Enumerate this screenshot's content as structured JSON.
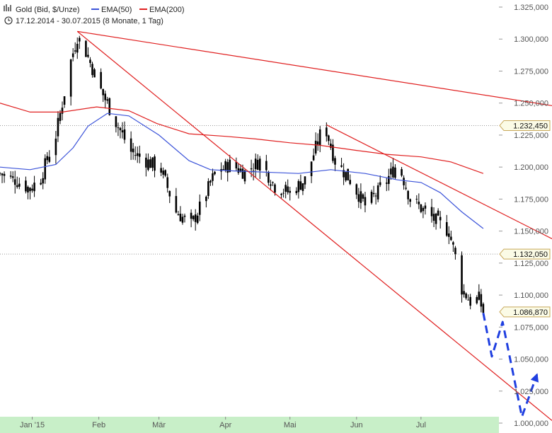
{
  "header": {
    "instrument": "Gold (Bid, $/Unze)",
    "ema_short_label": "EMA(50)",
    "ema_long_label": "EMA(200)",
    "period": "17.12.2014 - 30.07.2015 (8 Monate, 1 Tag)"
  },
  "colors": {
    "ema_short": "#3b53d9",
    "ema_long": "#e02020",
    "trendline": "#e02020",
    "projection": "#1f3fe0",
    "candle": "#000000",
    "x_axis_band": "#c8efc8",
    "badge_fill": "#fbfbe6",
    "badge_stroke": "#c8a85a"
  },
  "chart_data": {
    "type": "line",
    "x_ticks": [
      "Jan '15",
      "Feb",
      "Mär",
      "Apr",
      "Mai",
      "Jun",
      "Jul"
    ],
    "y_ticks": [
      "1.000,000",
      "1.025,000",
      "1.050,000",
      "1.075,000",
      "1.100,000",
      "1.125,000",
      "1.150,000",
      "1.175,000",
      "1.200,000",
      "1.225,000",
      "1.250,000",
      "1.275,000",
      "1.300,000",
      "1.325,000"
    ],
    "y_tick_values": [
      1000,
      1025,
      1050,
      1075,
      1100,
      1125,
      1150,
      1175,
      1200,
      1225,
      1250,
      1275,
      1300,
      1325
    ],
    "ylim": [
      1000,
      1325
    ],
    "x_range": [
      "2014-12-17",
      "2015-08-31"
    ],
    "price_close_path": [
      [
        "2014-12-17",
        1195
      ],
      [
        "2014-12-24",
        1190
      ],
      [
        "2014-12-31",
        1183
      ],
      [
        "2015-01-05",
        1192
      ],
      [
        "2015-01-12",
        1225
      ],
      [
        "2015-01-19",
        1283
      ],
      [
        "2015-01-22",
        1302
      ],
      [
        "2015-01-26",
        1290
      ],
      [
        "2015-02-02",
        1260
      ],
      [
        "2015-02-09",
        1235
      ],
      [
        "2015-02-16",
        1212
      ],
      [
        "2015-02-23",
        1205
      ],
      [
        "2015-03-02",
        1198
      ],
      [
        "2015-03-09",
        1165
      ],
      [
        "2015-03-16",
        1155
      ],
      [
        "2015-03-20",
        1168
      ],
      [
        "2015-03-27",
        1195
      ],
      [
        "2015-04-03",
        1202
      ],
      [
        "2015-04-10",
        1196
      ],
      [
        "2015-04-17",
        1205
      ],
      [
        "2015-04-24",
        1185
      ],
      [
        "2015-05-01",
        1180
      ],
      [
        "2015-05-08",
        1190
      ],
      [
        "2015-05-15",
        1225
      ],
      [
        "2015-05-18",
        1228
      ],
      [
        "2015-05-22",
        1205
      ],
      [
        "2015-05-29",
        1190
      ],
      [
        "2015-06-05",
        1170
      ],
      [
        "2015-06-12",
        1182
      ],
      [
        "2015-06-19",
        1200
      ],
      [
        "2015-06-22",
        1195
      ],
      [
        "2015-06-26",
        1175
      ],
      [
        "2015-07-03",
        1165
      ],
      [
        "2015-07-10",
        1155
      ],
      [
        "2015-07-14",
        1150
      ],
      [
        "2015-07-17",
        1130
      ],
      [
        "2015-07-20",
        1105
      ],
      [
        "2015-07-24",
        1095
      ],
      [
        "2015-07-28",
        1097
      ],
      [
        "2015-07-30",
        1087
      ]
    ],
    "series": [
      {
        "name": "EMA(50)",
        "points": [
          [
            "2014-12-17",
            1200
          ],
          [
            "2014-12-31",
            1198
          ],
          [
            "2015-01-12",
            1202
          ],
          [
            "2015-01-20",
            1215
          ],
          [
            "2015-01-27",
            1232
          ],
          [
            "2015-02-05",
            1242
          ],
          [
            "2015-02-15",
            1240
          ],
          [
            "2015-03-01",
            1225
          ],
          [
            "2015-03-15",
            1205
          ],
          [
            "2015-03-25",
            1198
          ],
          [
            "2015-04-05",
            1197
          ],
          [
            "2015-04-20",
            1196
          ],
          [
            "2015-05-05",
            1195
          ],
          [
            "2015-05-20",
            1198
          ],
          [
            "2015-06-05",
            1195
          ],
          [
            "2015-06-20",
            1190
          ],
          [
            "2015-07-01",
            1188
          ],
          [
            "2015-07-10",
            1180
          ],
          [
            "2015-07-20",
            1165
          ],
          [
            "2015-07-30",
            1152
          ]
        ]
      },
      {
        "name": "EMA(200)",
        "points": [
          [
            "2014-12-17",
            1250
          ],
          [
            "2014-12-31",
            1243
          ],
          [
            "2015-01-15",
            1243
          ],
          [
            "2015-01-31",
            1247
          ],
          [
            "2015-02-15",
            1244
          ],
          [
            "2015-02-28",
            1234
          ],
          [
            "2015-03-15",
            1226
          ],
          [
            "2015-04-01",
            1224
          ],
          [
            "2015-04-15",
            1222
          ],
          [
            "2015-05-01",
            1219
          ],
          [
            "2015-05-15",
            1217
          ],
          [
            "2015-06-01",
            1213
          ],
          [
            "2015-06-15",
            1210
          ],
          [
            "2015-07-01",
            1208
          ],
          [
            "2015-07-15",
            1204
          ],
          [
            "2015-07-30",
            1195
          ]
        ]
      }
    ],
    "trendlines": [
      [
        [
          "2015-01-22",
          1306
        ],
        [
          "2015-08-31",
          1002
        ]
      ],
      [
        [
          "2015-01-22",
          1306
        ],
        [
          "2015-08-31",
          1248
        ]
      ],
      [
        [
          "2015-05-18",
          1233
        ],
        [
          "2015-08-31",
          1144
        ]
      ]
    ],
    "projection": [
      [
        "2015-07-30",
        1086
      ],
      [
        "2015-08-03",
        1052
      ],
      [
        "2015-08-08",
        1079
      ],
      [
        "2015-08-17",
        1005
      ],
      [
        "2015-08-24",
        1038
      ]
    ],
    "badges": [
      {
        "label": "1.232,450",
        "value": 1232.45
      },
      {
        "label": "1.132,050",
        "value": 1132.05
      },
      {
        "label": "1.086,870",
        "value": 1086.87
      }
    ]
  }
}
